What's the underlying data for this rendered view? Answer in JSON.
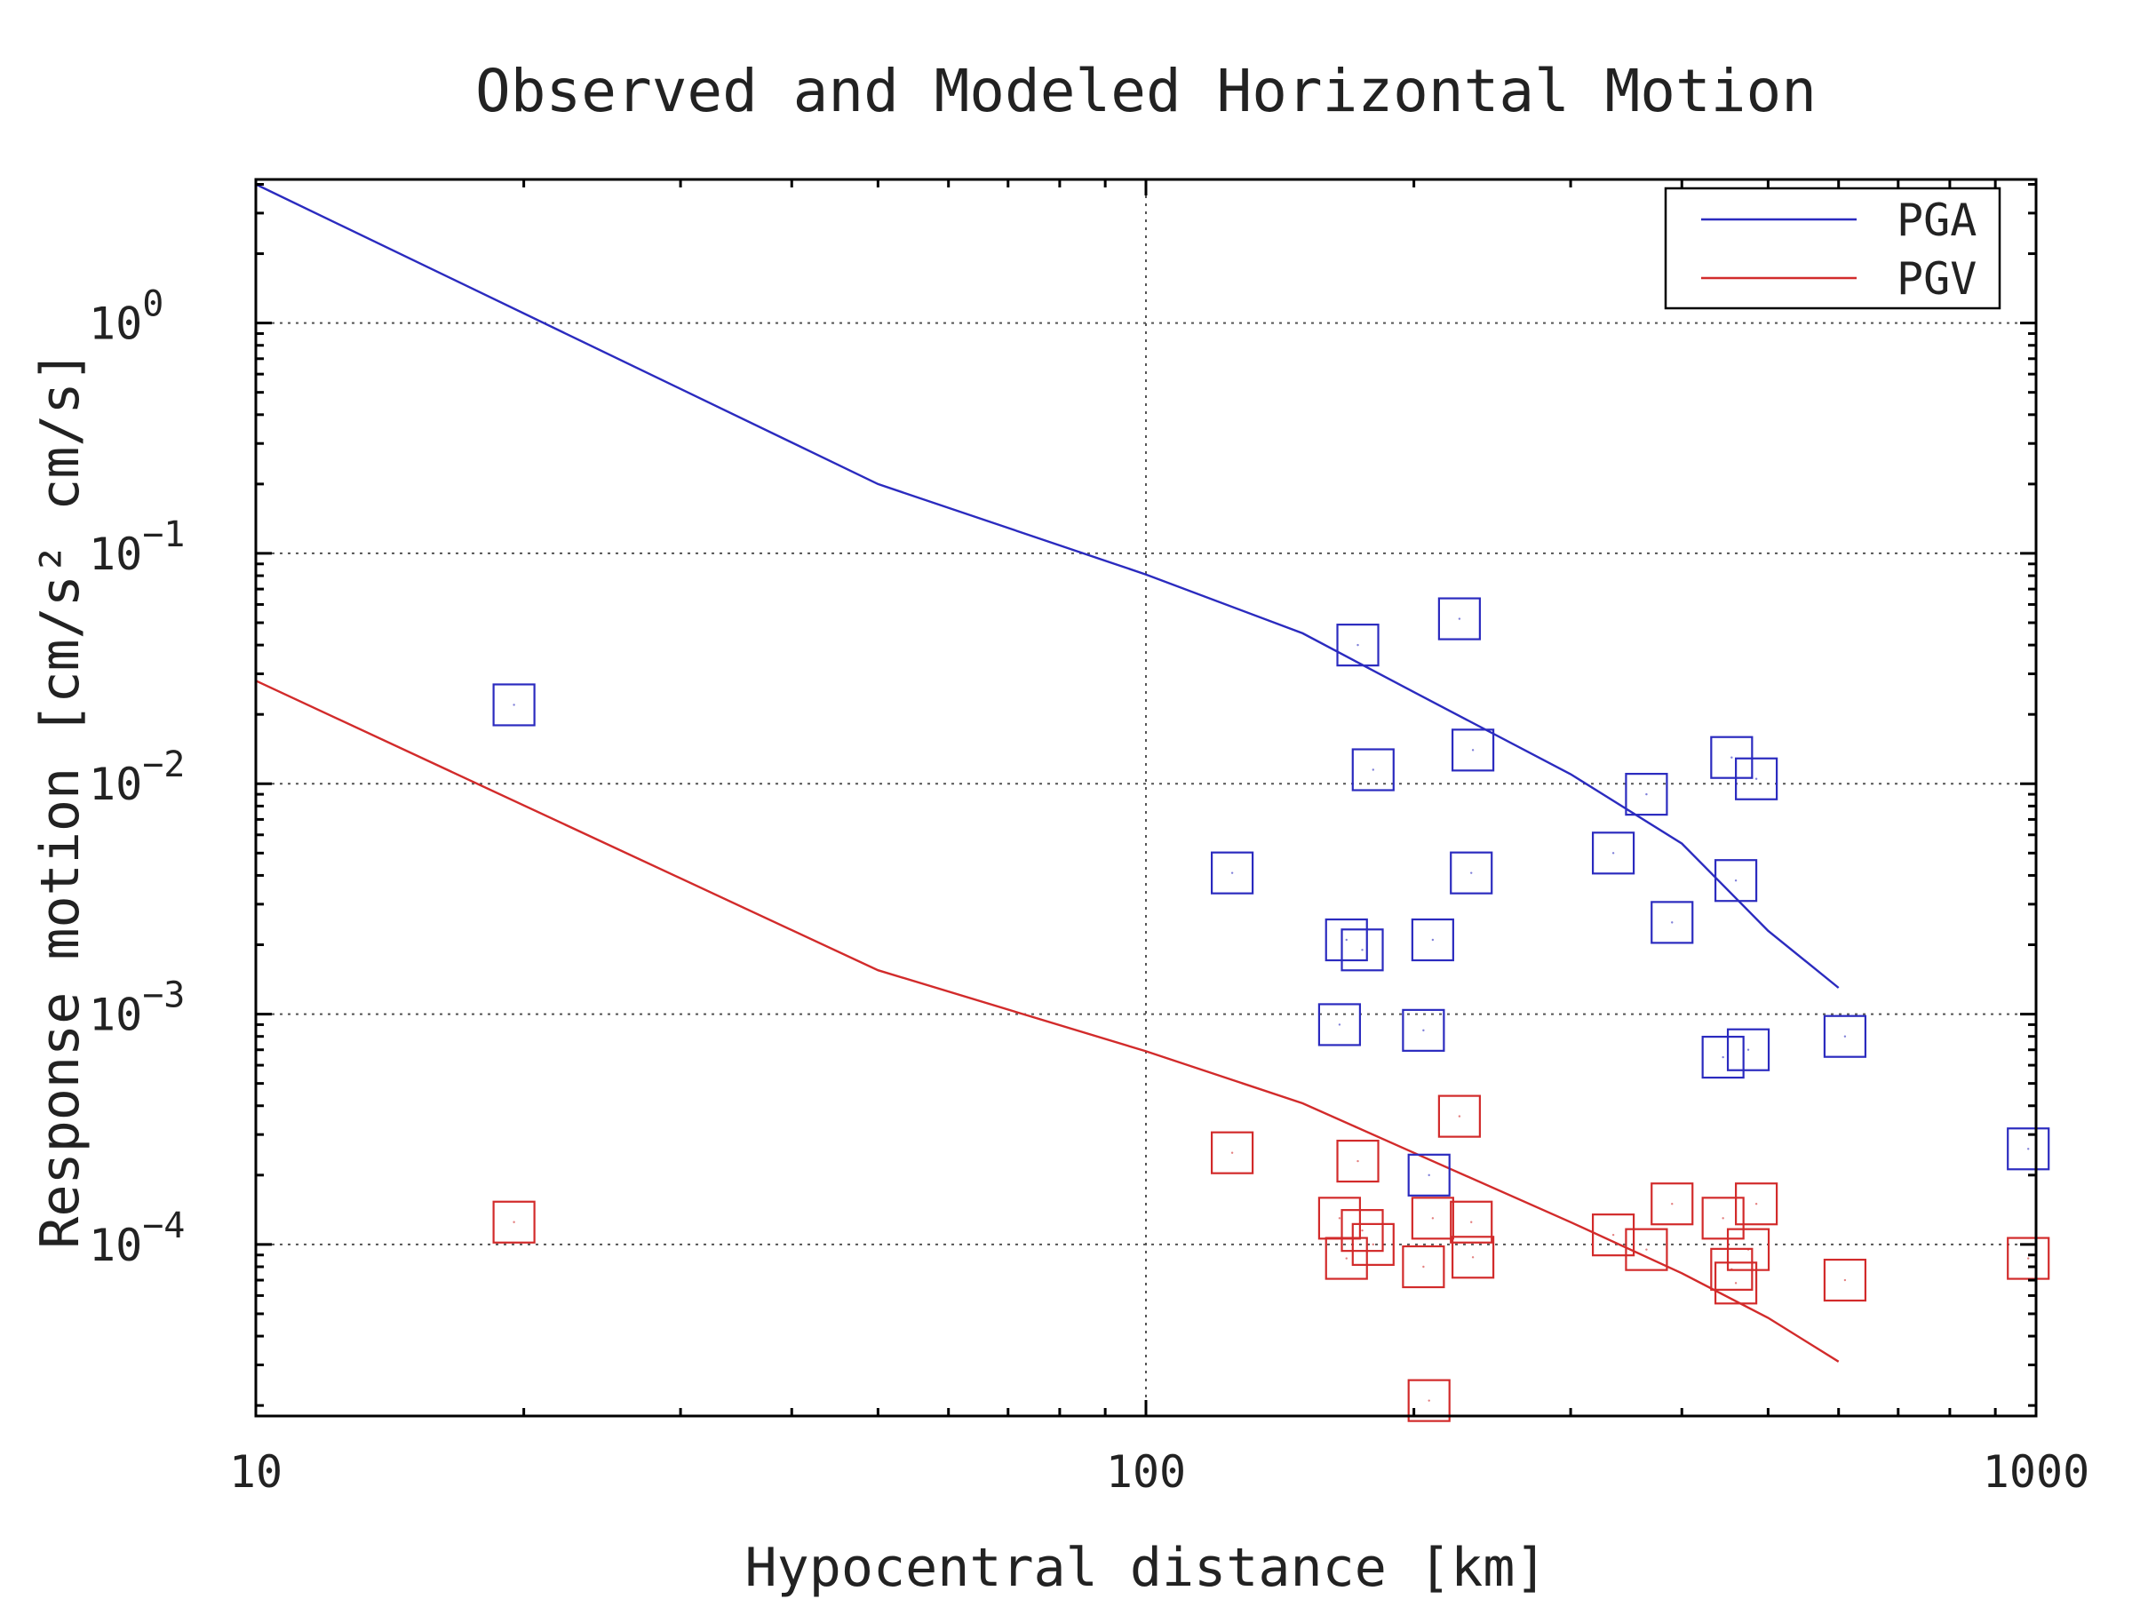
{
  "chart_data": {
    "type": "scatter",
    "title": "Observed and Modeled Horizontal Motion",
    "xlabel": "Hypocentral distance [km]",
    "ylabel": "Response motion [cm/s² cm/s]",
    "x_scale": "log",
    "y_scale": "log",
    "xlim": [
      10,
      1000
    ],
    "ylim": [
      1.8e-05,
      4.2
    ],
    "x_ticks": [
      {
        "value": 10,
        "label": "10"
      },
      {
        "value": 100,
        "label": "100"
      },
      {
        "value": 1000,
        "label": "1000"
      }
    ],
    "y_ticks": [
      {
        "value": 1,
        "exp": "0"
      },
      {
        "value": 0.1,
        "exp": "−1"
      },
      {
        "value": 0.01,
        "exp": "−2"
      },
      {
        "value": 0.001,
        "exp": "−3"
      },
      {
        "value": 0.0001,
        "exp": "−4"
      }
    ],
    "grid": true,
    "legend_position": "top-right",
    "series": [
      {
        "name": "PGA",
        "color": "#2b2bbf",
        "model": [
          [
            10,
            4.0
          ],
          [
            50,
            0.2
          ],
          [
            100,
            0.081
          ],
          [
            150,
            0.045
          ],
          [
            200,
            0.025
          ],
          [
            300,
            0.011
          ],
          [
            400,
            0.0055
          ],
          [
            500,
            0.0023
          ],
          [
            600,
            0.0013
          ]
        ],
        "observed": [
          [
            19.5,
            0.022
          ],
          [
            125,
            0.0041
          ],
          [
            165,
            0.0009
          ],
          [
            168,
            0.0021
          ],
          [
            173,
            0.04
          ],
          [
            175,
            0.0019
          ],
          [
            180,
            0.0115
          ],
          [
            205,
            0.00085
          ],
          [
            208,
            0.0002
          ],
          [
            210,
            0.0021
          ],
          [
            225,
            0.052
          ],
          [
            232,
            0.0041
          ],
          [
            233,
            0.014
          ],
          [
            335,
            0.005
          ],
          [
            365,
            0.009
          ],
          [
            390,
            0.0025
          ],
          [
            445,
            0.00065
          ],
          [
            455,
            0.013
          ],
          [
            460,
            0.0038
          ],
          [
            475,
            0.0007
          ],
          [
            485,
            0.0105
          ],
          [
            610,
            0.0008
          ],
          [
            980,
            0.00026
          ]
        ]
      },
      {
        "name": "PGV",
        "color": "#d22b2b",
        "model": [
          [
            10,
            0.028
          ],
          [
            50,
            0.00155
          ],
          [
            100,
            0.00069
          ],
          [
            150,
            0.00041
          ],
          [
            200,
            0.00025
          ],
          [
            300,
            0.000125
          ],
          [
            400,
            7.5e-05
          ],
          [
            500,
            4.8e-05
          ],
          [
            600,
            3.1e-05
          ]
        ],
        "observed": [
          [
            19.5,
            0.000125
          ],
          [
            125,
            0.00025
          ],
          [
            165,
            0.00013
          ],
          [
            168,
            8.7e-05
          ],
          [
            173,
            0.00023
          ],
          [
            175,
            0.000115
          ],
          [
            180,
            0.0001
          ],
          [
            205,
            8e-05
          ],
          [
            208,
            2.1e-05
          ],
          [
            210,
            0.00013
          ],
          [
            225,
            0.00036
          ],
          [
            232,
            0.000125
          ],
          [
            233,
            8.8e-05
          ],
          [
            335,
            0.00011
          ],
          [
            365,
            9.5e-05
          ],
          [
            390,
            0.00015
          ],
          [
            445,
            0.00013
          ],
          [
            455,
            7.8e-05
          ],
          [
            460,
            6.8e-05
          ],
          [
            475,
            9.5e-05
          ],
          [
            485,
            0.00015
          ],
          [
            610,
            7e-05
          ],
          [
            980,
            8.7e-05
          ]
        ]
      }
    ]
  }
}
